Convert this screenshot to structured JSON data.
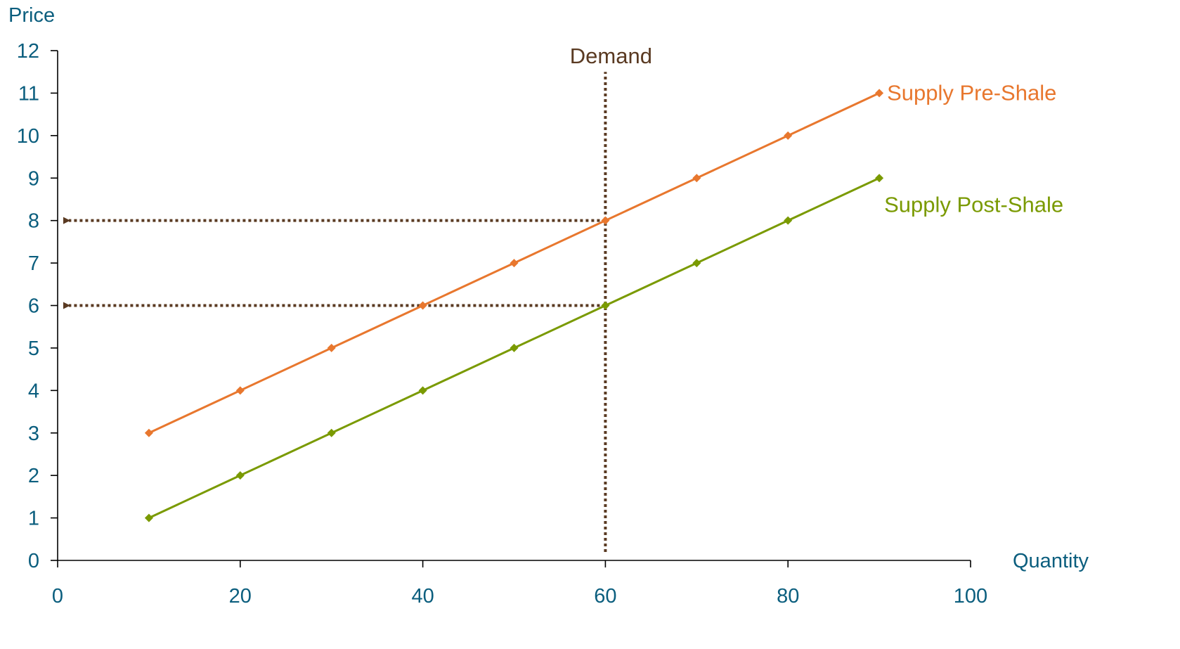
{
  "chart_data": {
    "type": "line",
    "title": "",
    "xlabel": "Quantity",
    "ylabel": "Price",
    "xlim": [
      0,
      100
    ],
    "ylim": [
      0,
      12
    ],
    "x_ticks": [
      0,
      20,
      40,
      60,
      80,
      100
    ],
    "y_ticks": [
      0,
      1,
      2,
      3,
      4,
      5,
      6,
      7,
      8,
      9,
      10,
      11,
      12
    ],
    "grid": false,
    "legend": "none",
    "axis_color": "#0B5E7E",
    "series": [
      {
        "name": "Supply Pre-Shale",
        "color": "#E8772E",
        "marker": "diamond",
        "x": [
          10,
          20,
          30,
          40,
          50,
          60,
          70,
          80,
          90
        ],
        "y": [
          3,
          4,
          5,
          6,
          7,
          8,
          9,
          10,
          11
        ]
      },
      {
        "name": "Supply Post-Shale",
        "color": "#7A9A01",
        "marker": "diamond",
        "x": [
          10,
          20,
          30,
          40,
          50,
          60,
          70,
          80,
          90
        ],
        "y": [
          1,
          2,
          3,
          4,
          5,
          6,
          7,
          8,
          9
        ]
      }
    ],
    "annotations": {
      "demand": {
        "label": "Demand",
        "x": 60,
        "y_range": [
          0,
          11.5
        ],
        "color": "#5A3A22",
        "style": "dotted"
      },
      "price_arrows": [
        {
          "y": 8,
          "x_from": 60,
          "x_to": 0
        },
        {
          "y": 6,
          "x_from": 60,
          "x_to": 0
        }
      ]
    }
  }
}
